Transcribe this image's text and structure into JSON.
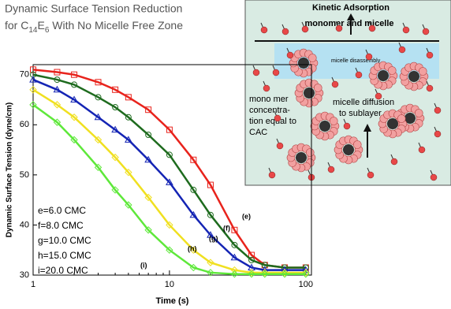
{
  "chart_data": {
    "type": "scatter",
    "title_line1": "Dynamic Surface Tension Reduction",
    "title_line2": [
      {
        "text": "for C"
      },
      {
        "text": "14",
        "sub": true
      },
      {
        "text": "E"
      },
      {
        "text": "6",
        "sub": true
      },
      {
        "text": " With No Micelle Free Zone"
      }
    ],
    "x_label": "Time (s)",
    "y_label": "Dynamic Surface Tension (dyne/cm)",
    "log_x": true,
    "xlim": [
      1,
      110
    ],
    "ylim": [
      30,
      72
    ],
    "xticks": [
      1,
      10,
      100
    ],
    "yticks": [
      30,
      40,
      50,
      60,
      70
    ],
    "x": [
      1,
      1.5,
      2,
      3,
      4,
      5,
      7,
      10,
      15,
      20,
      30,
      40,
      50,
      70,
      100
    ],
    "series": [
      {
        "name": "e=6.0 CMC",
        "tag": "(e)",
        "color": "#e8231c",
        "marker": "square",
        "values": [
          71,
          70.5,
          70,
          68.5,
          67,
          65.5,
          63,
          59,
          53,
          48,
          39,
          34,
          32,
          31.5,
          31.5
        ]
      },
      {
        "name": "f=8.0 CMC",
        "tag": "(f)",
        "color": "#1e6b1e",
        "marker": "circle",
        "values": [
          70,
          69,
          68,
          65.5,
          63.5,
          61.5,
          58,
          54,
          47,
          42,
          36,
          33,
          32,
          31.5,
          31.5
        ]
      },
      {
        "name": "g=10.0 CMC",
        "tag": "(g)",
        "color": "#1424b4",
        "marker": "triangle",
        "values": [
          69,
          67,
          65,
          61.5,
          59,
          57,
          53,
          48.5,
          42,
          38,
          33.5,
          31.5,
          31,
          31,
          31
        ]
      },
      {
        "name": "h=15.0 CMC",
        "tag": "(h)",
        "color": "#f0e020",
        "marker": "diamond",
        "values": [
          67,
          64,
          61.5,
          57,
          53.5,
          50.5,
          45.5,
          40,
          35,
          32.5,
          31,
          30.5,
          30.5,
          30.5,
          30.5
        ]
      },
      {
        "name": "i=20.0 CMC",
        "tag": "(i)",
        "color": "#5ee83a",
        "marker": "diamond",
        "values": [
          64,
          60.5,
          57,
          51.5,
          47,
          44,
          39,
          35,
          31.5,
          30.5,
          30.2,
          30.2,
          30.2,
          30.2,
          30.2
        ]
      }
    ]
  },
  "inset": {
    "heading1": "Kinetic Adsorption",
    "heading2": "monomer and micelle",
    "band_label": "micelle disassembly",
    "left_note": [
      "mono mer",
      "concentra-",
      "tion equal to",
      "CAC"
    ],
    "arrow_note": [
      "micelle diffusion",
      "to sublayer"
    ]
  }
}
